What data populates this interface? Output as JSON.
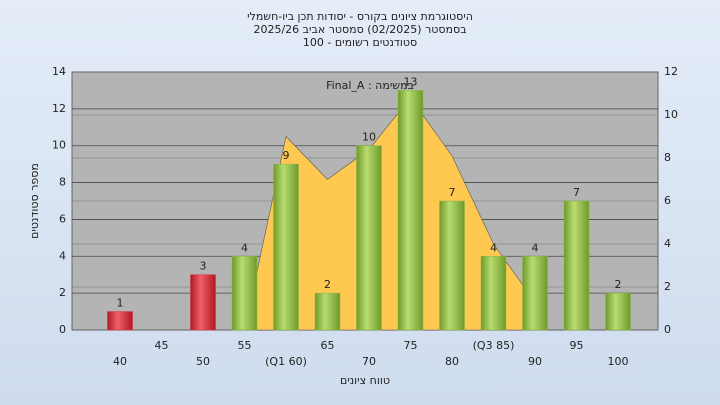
{
  "chart_data": {
    "type": "bar",
    "title": "היסטוגרמת ציונים בקורס - יסודות תכן ביו-חשמלי",
    "subtitle": "בסמסטר (02/2025) סמסטר אביב 2025/26",
    "subtitle2": "סטודנטים רשומים - 100",
    "annotation": "Final_A : במשימה",
    "xlabel": "טווח ציונים",
    "ylabel": "מספר סטודנטים",
    "categories": [
      "40",
      "45",
      "50",
      "55",
      "(Q1 60)",
      "65",
      "70",
      "75",
      "80",
      "(Q3 85)",
      "90",
      "95",
      "100"
    ],
    "values": [
      1,
      0,
      3,
      4,
      9,
      2,
      10,
      13,
      7,
      4,
      4,
      7,
      2
    ],
    "colors": [
      "#d9303a",
      "#d9303a",
      "#d9303a",
      "#8ab840",
      "#8ab840",
      "#8ab840",
      "#8ab840",
      "#8ab840",
      "#8ab840",
      "#8ab840",
      "#8ab840",
      "#8ab840",
      "#8ab840"
    ],
    "area": {
      "color": "#ffc850",
      "axis": "y2",
      "values": [
        null,
        null,
        null,
        0,
        9,
        7,
        8.4,
        10.8,
        8.1,
        4,
        1.3,
        null,
        null
      ]
    },
    "ylim": [
      0,
      14
    ],
    "yticks": [
      0,
      2,
      4,
      6,
      8,
      10,
      12,
      14
    ],
    "y2lim": [
      0,
      12
    ],
    "y2ticks": [
      0,
      2,
      4,
      6,
      8,
      10,
      12
    ],
    "grid": true
  }
}
